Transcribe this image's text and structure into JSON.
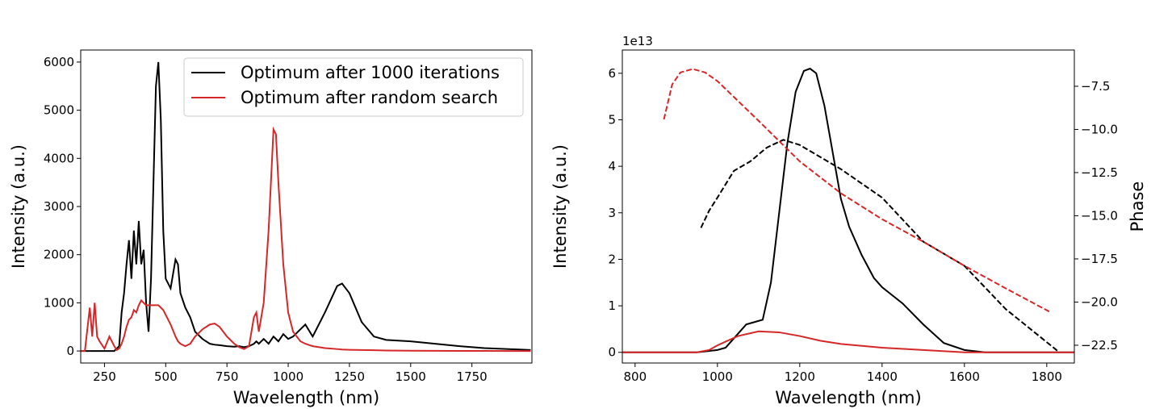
{
  "chart_data": [
    {
      "type": "line",
      "x_label": "Wavelength (nm)",
      "y_label": "Intensity (a.u.)",
      "xlim": [
        153,
        1995
      ],
      "ylim": [
        -250,
        6250
      ],
      "xticks": [
        250,
        500,
        750,
        1000,
        1250,
        1500,
        1750
      ],
      "yticks": [
        0,
        1000,
        2000,
        3000,
        4000,
        5000,
        6000
      ],
      "legend": "upper right",
      "series": [
        {
          "name": "Optimum after 1000 iterations",
          "color": "#000000",
          "x": [
            155,
            170,
            190,
            200,
            210,
            220,
            230,
            250,
            270,
            290,
            300,
            310,
            320,
            330,
            340,
            350,
            360,
            370,
            380,
            390,
            400,
            410,
            420,
            430,
            440,
            450,
            460,
            470,
            480,
            490,
            500,
            520,
            540,
            550,
            560,
            580,
            600,
            620,
            650,
            680,
            700,
            720,
            750,
            780,
            800,
            820,
            840,
            860,
            870,
            880,
            900,
            920,
            940,
            950,
            960,
            980,
            1000,
            1020,
            1050,
            1070,
            1100,
            1150,
            1200,
            1220,
            1250,
            1300,
            1350,
            1400,
            1500,
            1600,
            1700,
            1800,
            1900,
            1990
          ],
          "values": [
            0,
            0,
            0,
            0,
            0,
            0,
            0,
            0,
            0,
            0,
            50,
            100,
            800,
            1200,
            1800,
            2300,
            1500,
            2500,
            1800,
            2700,
            1800,
            2100,
            1000,
            400,
            1500,
            3500,
            5500,
            6000,
            4800,
            2500,
            1500,
            1300,
            1900,
            1800,
            1200,
            900,
            700,
            400,
            250,
            150,
            130,
            120,
            100,
            90,
            100,
            80,
            100,
            150,
            200,
            150,
            250,
            150,
            300,
            250,
            200,
            350,
            250,
            300,
            450,
            550,
            300,
            800,
            1350,
            1400,
            1200,
            600,
            300,
            230,
            200,
            150,
            100,
            60,
            40,
            20
          ]
        },
        {
          "name": "Optimum after random search",
          "color": "#d62728",
          "x": [
            155,
            170,
            190,
            200,
            210,
            220,
            230,
            250,
            270,
            290,
            300,
            310,
            320,
            330,
            340,
            350,
            360,
            370,
            380,
            390,
            400,
            410,
            420,
            430,
            440,
            450,
            460,
            470,
            480,
            490,
            500,
            520,
            540,
            550,
            560,
            580,
            600,
            620,
            650,
            680,
            700,
            720,
            750,
            780,
            800,
            820,
            840,
            860,
            870,
            880,
            900,
            920,
            940,
            950,
            960,
            980,
            1000,
            1020,
            1050,
            1070,
            1100,
            1150,
            1200,
            1220,
            1250,
            1300,
            1350,
            1400,
            1500,
            1600,
            1700,
            1800,
            1900,
            1990
          ],
          "values": [
            0,
            0,
            900,
            300,
            1000,
            300,
            200,
            50,
            300,
            100,
            20,
            50,
            150,
            300,
            500,
            650,
            700,
            850,
            800,
            950,
            1050,
            1000,
            950,
            950,
            950,
            950,
            950,
            950,
            900,
            850,
            750,
            550,
            300,
            200,
            150,
            100,
            150,
            300,
            450,
            550,
            570,
            500,
            300,
            150,
            80,
            40,
            100,
            700,
            800,
            400,
            1000,
            2500,
            4600,
            4500,
            3500,
            1800,
            800,
            400,
            200,
            150,
            100,
            60,
            40,
            30,
            25,
            20,
            15,
            10,
            5,
            3,
            2,
            1,
            0,
            0
          ]
        }
      ]
    },
    {
      "type": "line",
      "x_label": "Wavelength (nm)",
      "y_label": "Intensity (a.u.)",
      "y2_label": "Phase",
      "offset_text": "1e13",
      "xlim": [
        769,
        1867
      ],
      "ylim": [
        -0.23,
        6.5
      ],
      "y2lim": [
        -23.53,
        -5.4
      ],
      "xticks": [
        800,
        1000,
        1200,
        1400,
        1600,
        1800
      ],
      "yticks": [
        0,
        1,
        2,
        3,
        4,
        5,
        6
      ],
      "y2ticks": [
        {
          "value": -22.5,
          "label": "−22.5"
        },
        {
          "value": -20.0,
          "label": "−20.0"
        },
        {
          "value": -17.5,
          "label": "−17.5"
        },
        {
          "value": -15.0,
          "label": "−15.0"
        },
        {
          "value": -12.5,
          "label": "−12.5"
        },
        {
          "value": -10.0,
          "label": "−10.0"
        },
        {
          "value": -7.5,
          "label": "−7.5"
        }
      ],
      "series": [
        {
          "color": "#000000",
          "x": [
            769,
            950,
            1000,
            1020,
            1050,
            1070,
            1090,
            1110,
            1130,
            1150,
            1170,
            1190,
            1210,
            1225,
            1240,
            1260,
            1280,
            1300,
            1320,
            1350,
            1380,
            1400,
            1450,
            1500,
            1550,
            1600,
            1650,
            1867
          ],
          "values": [
            0,
            0,
            0.05,
            0.1,
            0.4,
            0.6,
            0.65,
            0.7,
            1.5,
            3,
            4.5,
            5.6,
            6.05,
            6.1,
            6.0,
            5.3,
            4.3,
            3.3,
            2.7,
            2.1,
            1.6,
            1.4,
            1.05,
            0.6,
            0.2,
            0.05,
            0,
            0
          ]
        },
        {
          "color": "#d62728",
          "x": [
            769,
            950,
            980,
            1000,
            1050,
            1100,
            1150,
            1200,
            1250,
            1300,
            1400,
            1500,
            1600,
            1867
          ],
          "values": [
            0,
            0,
            0.05,
            0.15,
            0.35,
            0.45,
            0.43,
            0.35,
            0.25,
            0.18,
            0.1,
            0.05,
            0,
            0
          ]
        },
        {
          "color": "#000000",
          "axis": "y2",
          "dash": true,
          "x": [
            960,
            980,
            1000,
            1040,
            1080,
            1120,
            1160,
            1200,
            1300,
            1400,
            1500,
            1600,
            1700,
            1830
          ],
          "values": [
            -15.7,
            -14.7,
            -13.95,
            -12.4,
            -11.85,
            -11.05,
            -10.6,
            -10.9,
            -12.3,
            -13.95,
            -16.5,
            -17.9,
            -20.4,
            -22.9
          ]
        },
        {
          "color": "#d62728",
          "axis": "y2",
          "dash": true,
          "x": [
            870,
            890,
            910,
            940,
            970,
            1000,
            1100,
            1200,
            1300,
            1400,
            1500,
            1600,
            1700,
            1810
          ],
          "values": [
            -9.42,
            -7.4,
            -6.7,
            -6.5,
            -6.7,
            -7.2,
            -9.5,
            -11.85,
            -13.7,
            -15.2,
            -16.5,
            -17.9,
            -19.2,
            -20.6
          ]
        }
      ]
    }
  ]
}
